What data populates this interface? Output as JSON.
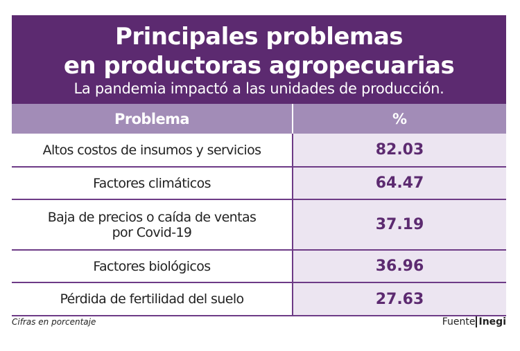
{
  "header": {
    "title_lines": [
      "Principales problemas",
      "en productoras agropecuarias"
    ],
    "subtitle": "La pandemia impactó a las unidades de producción."
  },
  "table": {
    "columns": [
      "Problema",
      "%"
    ],
    "rows": [
      [
        "Altos costos de insumos y servicios",
        82.03
      ],
      [
        "Factores climáticos",
        64.47
      ],
      [
        "Baja de precios o caída de ventas por Covid-19",
        37.19
      ],
      [
        "Factores biológicos",
        36.96
      ],
      [
        "Pérdida de fertilidad del suelo",
        27.63
      ]
    ]
  },
  "footer": {
    "note": "Cifras en porcentaje",
    "source_label": "Fuente",
    "source": "Inegi"
  }
}
